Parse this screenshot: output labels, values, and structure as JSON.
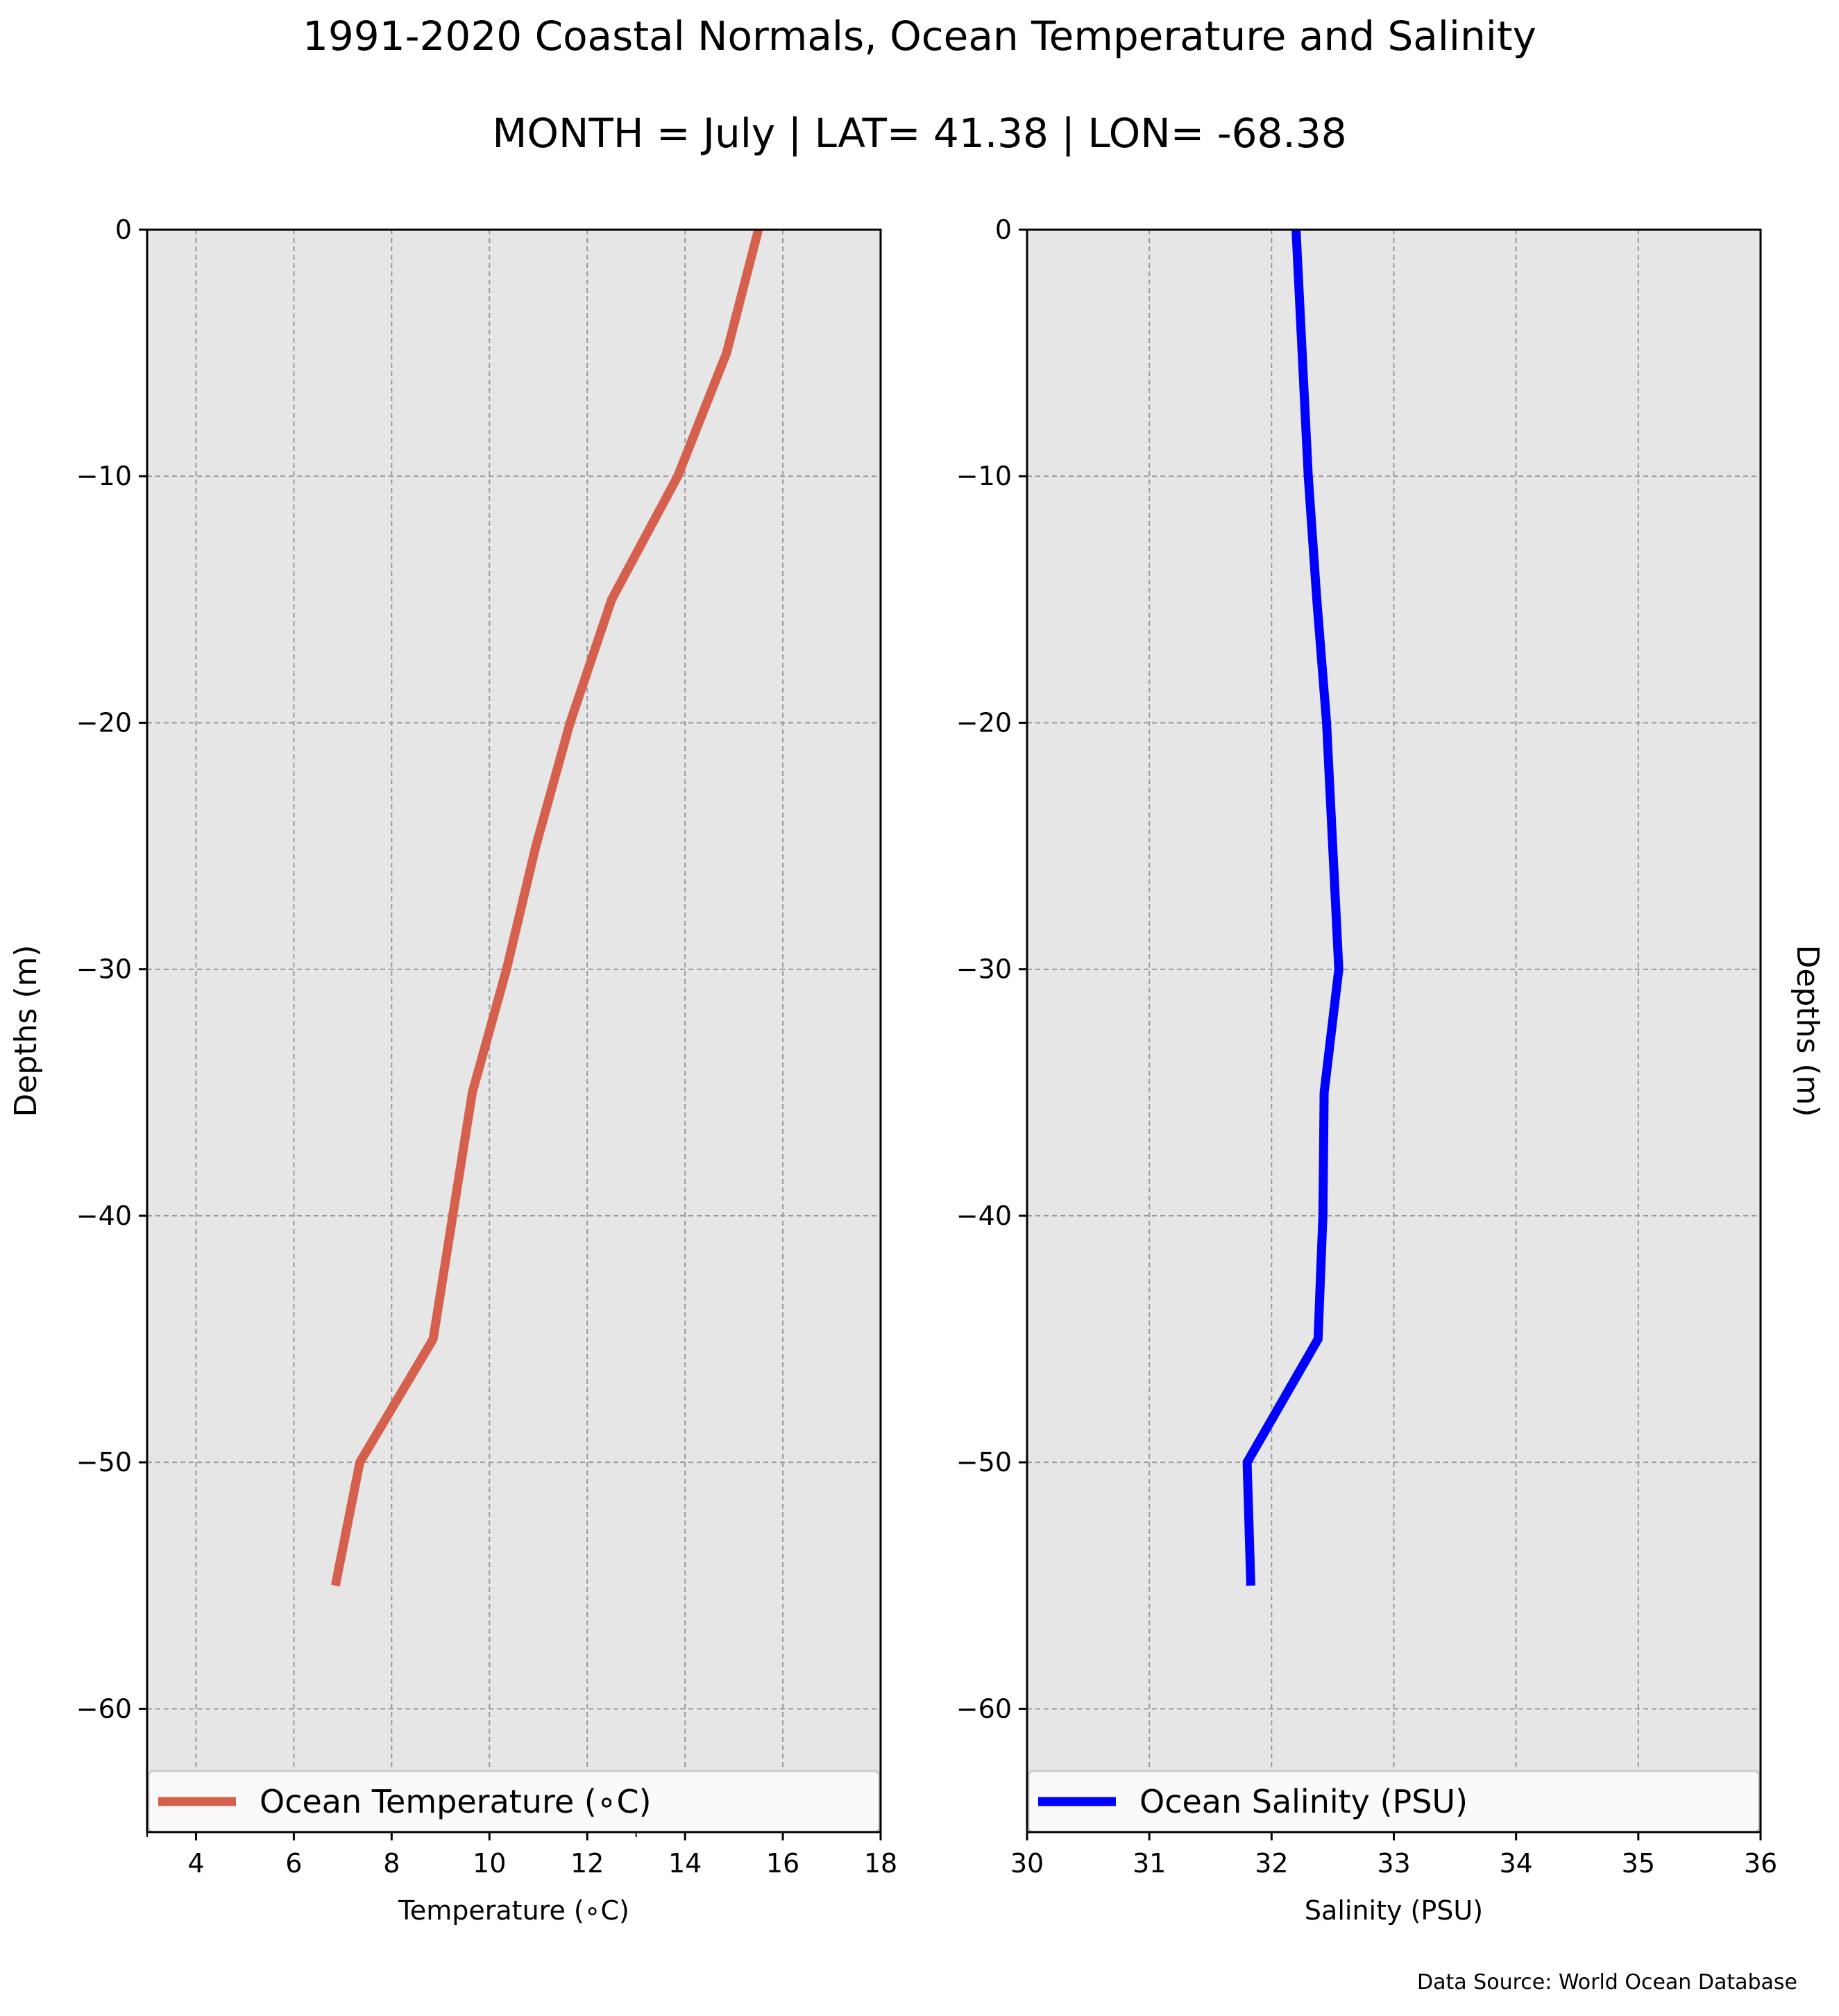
{
  "figure": {
    "title": "1991-2020 Coastal Normals, Ocean Temperature and Salinity",
    "subtitle": "MONTH = July | LAT= 41.38 | LON= -68.38",
    "source_note": "Data Source: World Ocean Database"
  },
  "chart_data": [
    {
      "type": "line",
      "xlabel": "Temperature (∘C)",
      "ylabel": "Depths (m)",
      "xlim": [
        3,
        18
      ],
      "ylim": [
        -65,
        0
      ],
      "xticks": [
        "4",
        "6",
        "8",
        "10",
        "12",
        "14",
        "16",
        "18"
      ],
      "xtick_values": [
        4,
        6,
        8,
        10,
        12,
        14,
        16,
        18
      ],
      "minor_xticks": [
        3,
        13
      ],
      "yticks": [
        "0",
        "−10",
        "−20",
        "−30",
        "−40",
        "−50",
        "−60"
      ],
      "ytick_values": [
        0,
        -10,
        -20,
        -30,
        -40,
        -50,
        -60
      ],
      "grid": true,
      "legend": "bottom",
      "background": "#e6e6e6",
      "series": [
        {
          "name": "Ocean Temperature (∘C)",
          "color": "#d5604e",
          "x": [
            15.5,
            14.85,
            13.85,
            12.5,
            11.65,
            10.95,
            10.35,
            9.65,
            9.25,
            8.85,
            7.35,
            6.85
          ],
          "y": [
            0,
            -5,
            -10,
            -15,
            -20,
            -25,
            -30,
            -35,
            -40,
            -45,
            -50,
            -55
          ]
        }
      ]
    },
    {
      "type": "line",
      "xlabel": "Salinity (PSU)",
      "ylabel": "Depths (m)",
      "ylabel_side": "right",
      "xlim": [
        30,
        36
      ],
      "ylim": [
        -65,
        0
      ],
      "xticks": [
        "30",
        "31",
        "32",
        "33",
        "34",
        "35",
        "36"
      ],
      "xtick_values": [
        30,
        31,
        32,
        33,
        34,
        35,
        36
      ],
      "minor_xticks": [],
      "yticks": [
        "0",
        "−10",
        "−20",
        "−30",
        "−40",
        "−50",
        "−60"
      ],
      "ytick_values": [
        0,
        -10,
        -20,
        -30,
        -40,
        -50,
        -60
      ],
      "grid": true,
      "legend": "bottom",
      "background": "#e6e6e6",
      "series": [
        {
          "name": "Ocean Salinity (PSU)",
          "color": "#0000ff",
          "x": [
            32.2,
            32.25,
            32.3,
            32.37,
            32.45,
            32.5,
            32.55,
            32.43,
            32.42,
            32.38,
            31.8,
            31.83
          ],
          "y": [
            0,
            -5,
            -10,
            -15,
            -20,
            -25,
            -30,
            -35,
            -40,
            -45,
            -50,
            -55
          ]
        }
      ]
    }
  ]
}
